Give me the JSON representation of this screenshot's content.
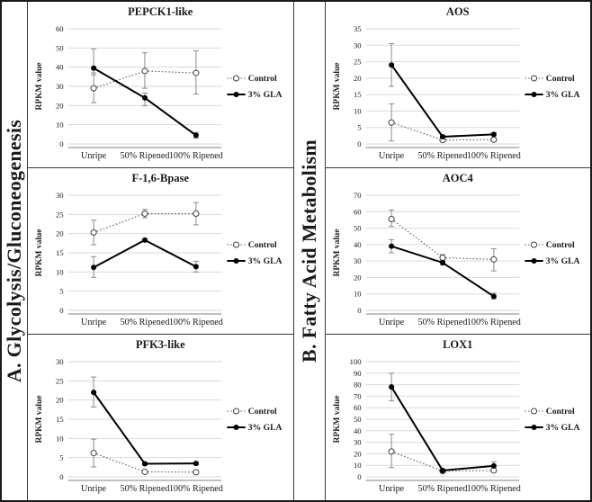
{
  "sections": [
    {
      "label": "A. Glycolysis/Gluconeogenesis"
    },
    {
      "label": "B. Fatty Acid Metabolism"
    }
  ],
  "colors": {
    "control_line": "#595959",
    "gla_line": "#000000",
    "grid_line": "#d9d9d9",
    "error_bar": "#8c8c8c",
    "axis_line": "#808080",
    "marker_stroke": "#404040",
    "text": "#1a1a1a"
  },
  "chart_data": [
    {
      "type": "line",
      "title": "PEPCK1-like",
      "section": "A. Glycolysis/Gluconeogenesis",
      "ylabel": "RPKM value",
      "categories": [
        "Unripe",
        "50% Ripened",
        "100% Ripened"
      ],
      "ylim": [
        0,
        60
      ],
      "ytick_step": 10,
      "grid": true,
      "legend_position": "right",
      "series": [
        {
          "name": "Control",
          "line": "dotted",
          "marker": "open-circle",
          "values": [
            29,
            38,
            37
          ],
          "err": [
            [
              7.5,
              8
            ],
            [
              9,
              9.5
            ],
            [
              11,
              11.5
            ]
          ]
        },
        {
          "name": "3% GLA",
          "line": "solid",
          "marker": "filled-circle",
          "values": [
            39.5,
            24,
            4.5
          ],
          "err": [
            [
              3.5,
              10
            ],
            [
              4,
              2.5
            ],
            [
              1.5,
              1.5
            ]
          ]
        }
      ]
    },
    {
      "type": "line",
      "title": "F-1,6-Bpase",
      "section": "A. Glycolysis/Gluconeogenesis",
      "ylabel": "RPKM value",
      "categories": [
        "Unripe",
        "50% Ripened",
        "100% Ripened"
      ],
      "ylim": [
        0,
        30
      ],
      "ytick_step": 5,
      "grid": true,
      "legend_position": "right",
      "series": [
        {
          "name": "Control",
          "line": "dotted",
          "marker": "open-circle",
          "values": [
            20.3,
            25.2,
            25.2
          ],
          "err": [
            [
              3.2,
              3.2
            ],
            [
              1.1,
              1.1
            ],
            [
              2.9,
              2.9
            ]
          ]
        },
        {
          "name": "3% GLA",
          "line": "solid",
          "marker": "filled-circle",
          "values": [
            11.2,
            18.3,
            11.4
          ],
          "err": [
            [
              2.6,
              2.8
            ],
            [
              0.3,
              0.3
            ],
            [
              1.4,
              1.4
            ]
          ]
        }
      ]
    },
    {
      "type": "line",
      "title": "PFK3-like",
      "section": "A. Glycolysis/Gluconeogenesis",
      "ylabel": "RPKM value",
      "categories": [
        "Unripe",
        "50% Ripened",
        "100% Ripened"
      ],
      "ylim": [
        0,
        30
      ],
      "ytick_step": 5,
      "grid": true,
      "legend_position": "right",
      "series": [
        {
          "name": "Control",
          "line": "dotted",
          "marker": "open-circle",
          "values": [
            6.2,
            1.3,
            1.2
          ],
          "err": [
            [
              3.6,
              3.6
            ],
            [
              0.2,
              0.2
            ],
            [
              0.2,
              0.2
            ]
          ]
        },
        {
          "name": "3% GLA",
          "line": "solid",
          "marker": "filled-circle",
          "values": [
            22,
            3.4,
            3.5
          ],
          "err": [
            [
              3.8,
              4
            ],
            [
              0.3,
              0.3
            ],
            [
              0.3,
              0.3
            ]
          ]
        }
      ]
    },
    {
      "type": "line",
      "title": "AOS",
      "section": "B. Fatty Acid Metabolism",
      "ylabel": "RPKM value",
      "categories": [
        "Unripe",
        "50% Ripened",
        "100% Ripened"
      ],
      "ylim": [
        0,
        35
      ],
      "ytick_step": 5,
      "grid": true,
      "legend_position": "right",
      "series": [
        {
          "name": "Control",
          "line": "dotted",
          "marker": "open-circle",
          "values": [
            6.5,
            1.2,
            1.3
          ],
          "err": [
            [
              5.6,
              5.7
            ],
            [
              0.3,
              0.3
            ],
            [
              0.3,
              0.3
            ]
          ]
        },
        {
          "name": "3% GLA",
          "line": "solid",
          "marker": "filled-circle",
          "values": [
            24,
            2.2,
            2.9
          ],
          "err": [
            [
              6.5,
              6.5
            ],
            [
              0.5,
              0.5
            ],
            [
              0.5,
              0.5
            ]
          ]
        }
      ]
    },
    {
      "type": "line",
      "title": "AOC4",
      "section": "B. Fatty Acid Metabolism",
      "ylabel": "RPKM value",
      "categories": [
        "Unripe",
        "50% Ripened",
        "100% Ripened"
      ],
      "ylim": [
        0,
        70
      ],
      "ytick_step": 10,
      "grid": true,
      "legend_position": "right",
      "series": [
        {
          "name": "Control",
          "line": "dotted",
          "marker": "open-circle",
          "values": [
            55.5,
            32,
            31
          ],
          "err": [
            [
              4.5,
              5.5
            ],
            [
              2,
              2
            ],
            [
              7,
              6.5
            ]
          ]
        },
        {
          "name": "3% GLA",
          "line": "solid",
          "marker": "filled-circle",
          "values": [
            39,
            29,
            8.5
          ],
          "err": [
            [
              4,
              4
            ],
            [
              1.5,
              1.5
            ],
            [
              1.5,
              2
            ]
          ]
        }
      ]
    },
    {
      "type": "line",
      "title": "LOX1",
      "section": "B. Fatty Acid Metabolism",
      "ylabel": "RPKM value",
      "categories": [
        "Unripe",
        "50% Ripened",
        "100% Ripened"
      ],
      "ylim": [
        0,
        100
      ],
      "ytick_step": 10,
      "grid": true,
      "legend_position": "right",
      "series": [
        {
          "name": "Control",
          "line": "dotted",
          "marker": "open-circle",
          "values": [
            22,
            5,
            5.5
          ],
          "err": [
            [
              14,
              15
            ],
            [
              1,
              1
            ],
            [
              1.5,
              1.5
            ]
          ]
        },
        {
          "name": "3% GLA",
          "line": "solid",
          "marker": "filled-circle",
          "values": [
            78,
            5.5,
            9.5
          ],
          "err": [
            [
              12,
              12
            ],
            [
              1,
              1
            ],
            [
              3.5,
              3.5
            ]
          ]
        }
      ]
    }
  ]
}
